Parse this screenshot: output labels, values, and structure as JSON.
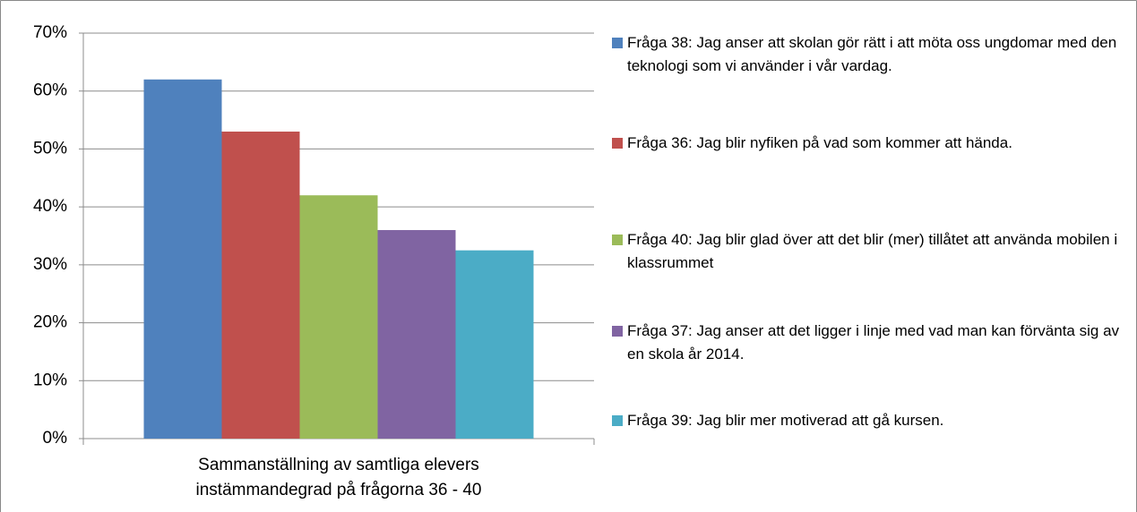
{
  "chart_data": {
    "type": "bar",
    "categories": [
      "Sammanställning av samtliga elevers instämmandegrad på frågorna 36 - 40"
    ],
    "series": [
      {
        "name": "Fråga 38: Jag anser att skolan gör rätt i att möta oss ungdomar med den teknologi som vi använder i vår vardag.",
        "color": "#4f81bd",
        "values": [
          62
        ]
      },
      {
        "name": "Fråga 36: Jag blir nyfiken på vad som kommer att hända.",
        "color": "#c0504d",
        "values": [
          53
        ]
      },
      {
        "name": "Fråga 40: Jag blir glad över att det blir (mer) tillåtet att använda mobilen i klassrummet",
        "color": "#9bbb59",
        "values": [
          42
        ]
      },
      {
        "name": "Fråga 37: Jag anser att det ligger i linje med vad man kan förvänta sig av en skola år 2014.",
        "color": "#8064a2",
        "values": [
          36
        ]
      },
      {
        "name": "Fråga 39: Jag blir mer motiverad att gå kursen.",
        "color": "#4bacc6",
        "values": [
          32.5
        ]
      }
    ],
    "ylim": [
      0,
      70
    ],
    "yticks": [
      {
        "value": 0,
        "label": "0%"
      },
      {
        "value": 10,
        "label": "10%"
      },
      {
        "value": 20,
        "label": "20%"
      },
      {
        "value": 30,
        "label": "30%"
      },
      {
        "value": 40,
        "label": "40%"
      },
      {
        "value": 50,
        "label": "50%"
      },
      {
        "value": 60,
        "label": "60%"
      },
      {
        "value": 70,
        "label": "70%"
      }
    ],
    "grid": true,
    "legend": "right"
  }
}
